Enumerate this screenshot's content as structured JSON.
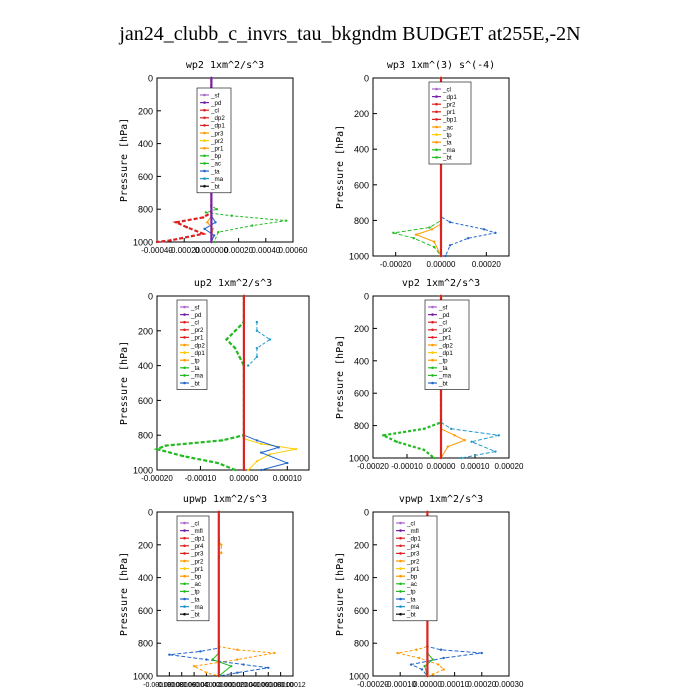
{
  "figure": {
    "title": "jan24_clubb_c_invrs_tau_bkgndm  BUDGET at255E,-2N"
  },
  "chart_data": [
    {
      "type": "line",
      "title": "wp2  1xm^2/s^3",
      "ylabel": "Pressure [hPa]",
      "xlim": [
        -0.0004,
        0.0006
      ],
      "ylim": [
        1000,
        0
      ],
      "xticks": [
        -0.0004,
        -0.0002,
        0.0,
        0.0002,
        0.0004,
        0.0006
      ],
      "xtick_labels": [
        "-0.00040",
        "-0.00020",
        "0.000000",
        "0.00020",
        "0.00040",
        "0.00060"
      ],
      "yticks": [
        0,
        200,
        400,
        600,
        800,
        1000
      ],
      "legend": [
        "_sf",
        "_pd",
        "_cl",
        "_dp2",
        "_dp1",
        "_pr3",
        "_pr2",
        "_pr1",
        "_bp",
        "_ac",
        "_ta",
        "_ma",
        "_bt"
      ],
      "series": [
        {
          "name": "_ac",
          "color": "#22bb22",
          "points": [
            [
              0,
              0
            ],
            [
              0,
              780
            ],
            [
              4e-05,
              800
            ],
            [
              -4e-05,
              820
            ],
            [
              0.00015,
              840
            ],
            [
              0.00055,
              870
            ],
            [
              0.0003,
              900
            ],
            [
              5e-05,
              940
            ],
            [
              2e-05,
              1000
            ]
          ]
        },
        {
          "name": "_dp1",
          "color": "#dd2222",
          "points": [
            [
              0,
              0
            ],
            [
              0,
              200
            ],
            [
              -1e-05,
              250
            ],
            [
              0,
              300
            ],
            [
              0,
              820
            ],
            [
              -6e-05,
              850
            ],
            [
              -0.00026,
              880
            ],
            [
              -0.00018,
              910
            ],
            [
              -6e-05,
              950
            ],
            [
              -0.0003,
              990
            ],
            [
              -0.0004,
              1000
            ]
          ]
        },
        {
          "name": "_ta",
          "color": "#2266cc",
          "points": [
            [
              0,
              0
            ],
            [
              0,
              840
            ],
            [
              3e-05,
              880
            ],
            [
              -5e-05,
              920
            ],
            [
              2e-05,
              960
            ],
            [
              0,
              1000
            ]
          ]
        },
        {
          "name": "_pr2",
          "color": "#ff9900",
          "points": [
            [
              0,
              0
            ],
            [
              0,
              840
            ],
            [
              -3e-05,
              880
            ],
            [
              1e-05,
              920
            ],
            [
              0,
              1000
            ]
          ]
        },
        {
          "name": "_bt",
          "color": "#7722aa",
          "points": [
            [
              0,
              0
            ],
            [
              0,
              1000
            ]
          ]
        }
      ]
    },
    {
      "type": "line",
      "title": "wp3  1xm^(3) s^(-4)",
      "ylabel": "Pressure [hPa]",
      "xlim": [
        -0.0003,
        0.0003
      ],
      "ylim": [
        1000,
        0
      ],
      "xticks": [
        -0.0002,
        0.0,
        0.0002
      ],
      "xtick_labels": [
        "-0.00020",
        "0.00000",
        "0.00020"
      ],
      "yticks": [
        0,
        200,
        400,
        600,
        800,
        1000
      ],
      "legend": [
        "_cl",
        "_dp1",
        "_pr2",
        "_pr1",
        "_bp1",
        "_ac",
        "_tp",
        "_ta",
        "_ma",
        "_bt"
      ],
      "series": [
        {
          "name": "_ta",
          "color": "#2266cc",
          "points": [
            [
              0,
              0
            ],
            [
              0,
              780
            ],
            [
              4e-05,
              810
            ],
            [
              0.00019,
              850
            ],
            [
              0.00024,
              870
            ],
            [
              0.00012,
              900
            ],
            [
              4e-05,
              940
            ],
            [
              2e-05,
              1000
            ]
          ]
        },
        {
          "name": "_ac",
          "color": "#22bb22",
          "points": [
            [
              0,
              0
            ],
            [
              0,
              800
            ],
            [
              -5e-05,
              840
            ],
            [
              -0.00021,
              870
            ],
            [
              -0.00012,
              900
            ],
            [
              -3e-05,
              950
            ],
            [
              0,
              1000
            ]
          ]
        },
        {
          "name": "_pr2",
          "color": "#ff9900",
          "points": [
            [
              0,
              0
            ],
            [
              0,
              820
            ],
            [
              -4e-05,
              850
            ],
            [
              -0.00011,
              880
            ],
            [
              -3e-05,
              920
            ],
            [
              0,
              1000
            ]
          ]
        },
        {
          "name": "_dp1",
          "color": "#dd2222",
          "points": [
            [
              0,
              0
            ],
            [
              0,
              1000
            ]
          ]
        }
      ]
    },
    {
      "type": "line",
      "title": "up2  1xm^2/s^3",
      "ylabel": "Pressure [hPa]",
      "xlim": [
        -0.0002,
        0.00015
      ],
      "ylim": [
        1000,
        0
      ],
      "xticks": [
        -0.0002,
        -0.0001,
        0.0,
        0.0001
      ],
      "xtick_labels": [
        "-0.00020",
        "-0.00010",
        "0.00000",
        "0.00010"
      ],
      "yticks": [
        0,
        200,
        400,
        600,
        800,
        1000
      ],
      "legend": [
        "_sf",
        "_pd",
        "_cl",
        "_pr2",
        "_pr1",
        "_dp2",
        "_dp1",
        "_tp",
        "_ta",
        "_ma",
        "_bt"
      ],
      "series": [
        {
          "name": "_ta",
          "color": "#2299cc",
          "points": [
            [
              3e-05,
              150
            ],
            [
              3e-05,
              200
            ],
            [
              6e-05,
              250
            ],
            [
              3e-05,
              300
            ],
            [
              3e-05,
              350
            ],
            [
              1e-05,
              400
            ]
          ]
        },
        {
          "name": "_dp1",
          "color": "#22bb22",
          "points": [
            [
              0,
              0
            ],
            [
              0,
              150
            ],
            [
              -2e-05,
              200
            ],
            [
              -4e-05,
              250
            ],
            [
              -2e-05,
              300
            ],
            [
              -1e-05,
              350
            ],
            [
              0,
              400
            ],
            [
              0,
              800
            ],
            [
              -5e-05,
              830
            ],
            [
              -0.00018,
              860
            ],
            [
              -0.0002,
              880
            ],
            [
              -0.00014,
              920
            ],
            [
              -6e-05,
              960
            ],
            [
              -2e-05,
              1000
            ]
          ]
        },
        {
          "name": "_pr1",
          "color": "#ffcc00",
          "points": [
            [
              0,
              0
            ],
            [
              0,
              820
            ],
            [
              4e-05,
              850
            ],
            [
              0.00012,
              880
            ],
            [
              6e-05,
              910
            ],
            [
              3e-05,
              950
            ],
            [
              1e-05,
              1000
            ]
          ]
        },
        {
          "name": "_tp",
          "color": "#2266cc",
          "points": [
            [
              0,
              0
            ],
            [
              0,
              800
            ],
            [
              3e-05,
              830
            ],
            [
              8e-05,
              870
            ],
            [
              4e-05,
              900
            ],
            [
              0.0001,
              960
            ],
            [
              4e-05,
              1000
            ]
          ]
        },
        {
          "name": "_cl",
          "color": "#dd2222",
          "points": [
            [
              0,
              0
            ],
            [
              0,
              1000
            ]
          ]
        }
      ]
    },
    {
      "type": "line",
      "title": "vp2  1xm^2/s^3",
      "ylabel": "Pressure [hPa]",
      "xlim": [
        -0.0002,
        0.0002
      ],
      "ylim": [
        1000,
        0
      ],
      "xticks": [
        -0.0002,
        -0.0001,
        0.0,
        0.0001,
        0.0002
      ],
      "xtick_labels": [
        "-0.00020",
        "-0.00010",
        "0.00000",
        "0.00010",
        "0.00020"
      ],
      "yticks": [
        0,
        200,
        400,
        600,
        800,
        1000
      ],
      "legend": [
        "_sf",
        "_pd",
        "_cl",
        "_pr2",
        "_pr1",
        "_dp2",
        "_dp1",
        "_tp",
        "_ta",
        "_ma",
        "_bt"
      ],
      "series": [
        {
          "name": "_dp1",
          "color": "#22bb22",
          "points": [
            [
              0,
              0
            ],
            [
              0,
              150
            ],
            [
              -1e-05,
              200
            ],
            [
              -2e-05,
              260
            ],
            [
              -1e-05,
              320
            ],
            [
              0,
              400
            ],
            [
              0,
              780
            ],
            [
              -5e-05,
              820
            ],
            [
              -0.00017,
              860
            ],
            [
              -0.00013,
              900
            ],
            [
              -5e-05,
              950
            ],
            [
              -2e-05,
              1000
            ]
          ]
        },
        {
          "name": "_ta",
          "color": "#2299cc",
          "points": [
            [
              0,
              0
            ],
            [
              0,
              780
            ],
            [
              3e-05,
              820
            ],
            [
              0.00017,
              860
            ],
            [
              9e-05,
              900
            ],
            [
              0.00016,
              960
            ],
            [
              6e-05,
              1000
            ]
          ]
        },
        {
          "name": "_pr2",
          "color": "#ff9900",
          "points": [
            [
              0,
              0
            ],
            [
              0,
              820
            ],
            [
              4e-05,
              860
            ],
            [
              7e-05,
              890
            ],
            [
              2e-05,
              930
            ],
            [
              0,
              1000
            ]
          ]
        },
        {
          "name": "_cl",
          "color": "#dd2222",
          "points": [
            [
              0,
              0
            ],
            [
              0,
              1000
            ]
          ]
        }
      ]
    },
    {
      "type": "line",
      "title": "upwp  1xm^2/s^3",
      "ylabel": "Pressure [hPa]",
      "xlim": [
        -0.0001,
        0.00012
      ],
      "ylim": [
        1000,
        0
      ],
      "xticks": [
        -0.0001,
        -8e-05,
        -6e-05,
        -4e-05,
        -2e-05,
        0.0,
        2e-05,
        4e-05,
        6e-05,
        8e-05,
        0.0001,
        0.00012
      ],
      "xtick_labels": [
        "-0.00010",
        "-0.00008",
        "-0.00006",
        "-0.00004",
        "-0.00002",
        "0.00000",
        "0.00002",
        "0.00004",
        "0.00006",
        "0.00008",
        "0.00010",
        "0.00012"
      ],
      "yticks": [
        0,
        200,
        400,
        600,
        800,
        1000
      ],
      "legend": [
        "_cl",
        "_mfl",
        "_dp1",
        "_pr4",
        "_pr3",
        "_pr2",
        "_pr1",
        "_bp",
        "_ac",
        "_tp",
        "_ta",
        "_ma",
        "_bt"
      ],
      "series": [
        {
          "name": "_pr3",
          "color": "#ff9900",
          "points": [
            [
              0,
              0
            ],
            [
              0,
              180
            ],
            [
              4e-06,
              200
            ],
            [
              4e-06,
              250
            ],
            [
              0,
              280
            ],
            [
              0,
              820
            ],
            [
              3e-05,
              840
            ],
            [
              9e-05,
              860
            ],
            [
              3e-05,
              900
            ],
            [
              -4e-05,
              940
            ],
            [
              -2e-05,
              980
            ],
            [
              0,
              1000
            ]
          ]
        },
        {
          "name": "_ta",
          "color": "#2266cc",
          "points": [
            [
              0,
              0
            ],
            [
              0,
              830
            ],
            [
              -3e-05,
              850
            ],
            [
              -8e-05,
              870
            ],
            [
              -2e-05,
              900
            ],
            [
              4e-05,
              930
            ],
            [
              8e-05,
              950
            ],
            [
              3e-05,
              980
            ],
            [
              0,
              1000
            ]
          ]
        },
        {
          "name": "_ac",
          "color": "#22bb22",
          "points": [
            [
              0,
              0
            ],
            [
              0,
              860
            ],
            [
              -1e-05,
              900
            ],
            [
              2e-05,
              940
            ],
            [
              0,
              1000
            ]
          ]
        },
        {
          "name": "_dp1",
          "color": "#dd2222",
          "points": [
            [
              0,
              0
            ],
            [
              0,
              1000
            ]
          ]
        }
      ]
    },
    {
      "type": "line",
      "title": "vpwp  1xm^2/s^3",
      "ylabel": "Pressure [hPa]",
      "xlim": [
        -0.0002,
        0.0003
      ],
      "ylim": [
        1000,
        0
      ],
      "xticks": [
        -0.0002,
        -0.0001,
        0.0,
        0.0001,
        0.0002,
        0.0003
      ],
      "xtick_labels": [
        "-0.00020",
        "-0.00010",
        "0.00000",
        "0.00010",
        "0.00020",
        "0.00030"
      ],
      "yticks": [
        0,
        200,
        400,
        600,
        800,
        1000
      ],
      "legend": [
        "_cl",
        "_mfl",
        "_dp1",
        "_pr4",
        "_pr3",
        "_pr2",
        "_pr1",
        "_bp",
        "_ac",
        "_tp",
        "_ta",
        "_ma",
        "_bt"
      ],
      "series": [
        {
          "name": "_pr3",
          "color": "#ff9900",
          "points": [
            [
              0,
              0
            ],
            [
              0,
              820
            ],
            [
              -4e-05,
              840
            ],
            [
              -0.00011,
              860
            ],
            [
              -3e-05,
              890
            ],
            [
              4e-05,
              930
            ],
            [
              6e-05,
              960
            ],
            [
              2e-05,
              990
            ],
            [
              0,
              1000
            ]
          ]
        },
        {
          "name": "_ta",
          "color": "#2266cc",
          "points": [
            [
              0,
              0
            ],
            [
              0,
              820
            ],
            [
              5e-05,
              840
            ],
            [
              0.0002,
              860
            ],
            [
              6e-05,
              890
            ],
            [
              -6e-05,
              930
            ],
            [
              -2e-05,
              960
            ],
            [
              0,
              1000
            ]
          ]
        },
        {
          "name": "_ac",
          "color": "#22bb22",
          "points": [
            [
              0,
              0
            ],
            [
              0,
              860
            ],
            [
              2e-05,
              900
            ],
            [
              -1e-05,
              940
            ],
            [
              0,
              1000
            ]
          ]
        },
        {
          "name": "_dp1",
          "color": "#dd2222",
          "points": [
            [
              0,
              0
            ],
            [
              0,
              1000
            ]
          ]
        }
      ]
    }
  ]
}
